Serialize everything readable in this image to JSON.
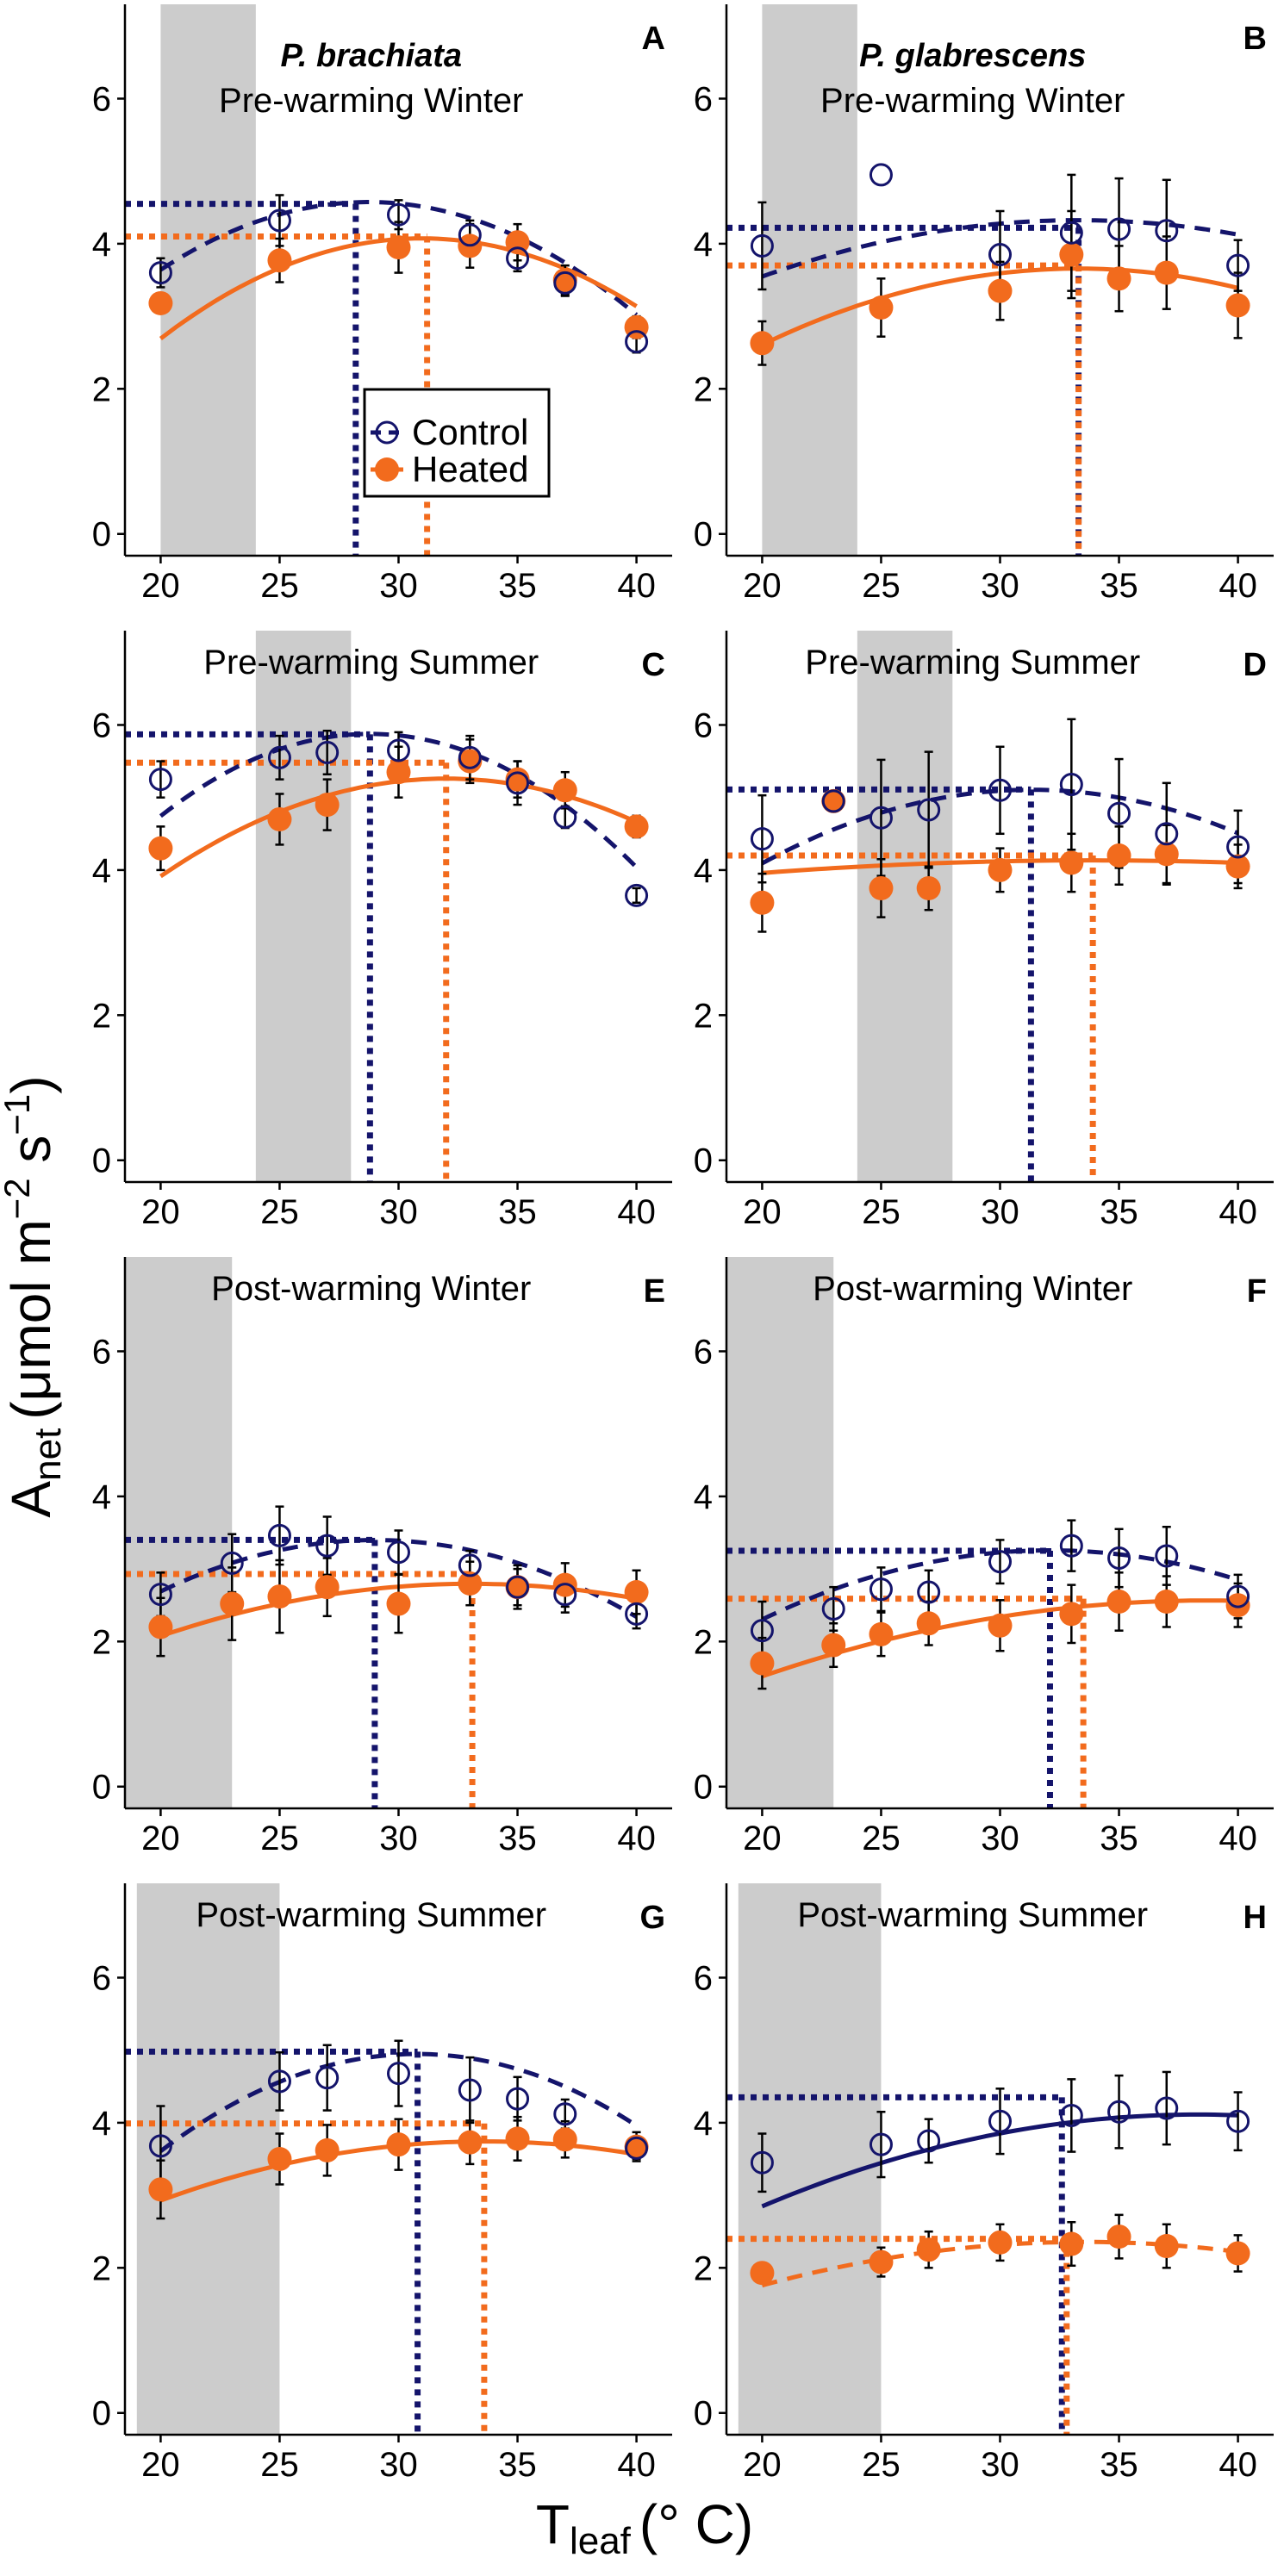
{
  "colors": {
    "control": "#14146b",
    "heated": "#f26b1d",
    "band": "#cccccc"
  },
  "legend": {
    "control": "Control",
    "heated": "Heated"
  },
  "chart_data": {
    "type": "scatter",
    "title": "",
    "ylabel": {
      "main": "A",
      "sub": "net",
      "units": "(μmol m",
      "exp1": "−2",
      "mid": " s",
      "exp2": "−1",
      "close": ")"
    },
    "xlabel": {
      "main": "T",
      "sub": "leaf",
      "units": "(° C)"
    },
    "xlim": [
      18.5,
      41.5
    ],
    "ylim": [
      -0.3,
      7.3
    ],
    "xticks": [
      "20",
      "25",
      "30",
      "35",
      "40"
    ],
    "yticks": [
      "0",
      "2",
      "4",
      "6"
    ],
    "panels": [
      {
        "letter": "A",
        "species": "P. brachiata",
        "season": "Pre-warming Winter",
        "band": [
          20,
          24
        ],
        "control": {
          "x": [
            20,
            25,
            30,
            33,
            35,
            37,
            40
          ],
          "y": [
            3.6,
            4.32,
            4.4,
            4.12,
            3.8,
            3.46,
            2.65
          ],
          "err": [
            0.2,
            0.35,
            0.2,
            0.2,
            0.18,
            0.18,
            0.15
          ],
          "fit": {
            "style": "dashed",
            "a": -0.01225,
            "b": 0.704,
            "c": -5.54
          },
          "topt": 28.2,
          "pmax": 4.55
        },
        "heated": {
          "x": [
            20,
            25,
            30,
            33,
            35,
            37,
            40
          ],
          "y": [
            3.18,
            3.77,
            3.95,
            3.97,
            4.02,
            3.5,
            2.85
          ],
          "err": [
            0.1,
            0.3,
            0.35,
            0.3,
            0.25,
            0.2,
            0.15
          ],
          "fit": {
            "style": "solid",
            "a": -0.01148,
            "b": 0.7111,
            "c": -6.938
          },
          "topt": 31.2,
          "pmax": 4.1
        }
      },
      {
        "letter": "B",
        "species": "P. glabrescens",
        "season": "Pre-warming Winter",
        "band": [
          20,
          24
        ],
        "control": {
          "x": [
            20,
            25,
            30,
            33,
            35,
            37,
            40
          ],
          "y": [
            3.97,
            4.95,
            3.85,
            4.15,
            4.2,
            4.18,
            3.7
          ],
          "err": [
            0.6,
            0,
            0.6,
            0.8,
            0.7,
            0.7,
            0.35
          ],
          "fit": {
            "style": "dashed",
            "a": -0.0044,
            "b": 0.2929,
            "c": -0.55
          },
          "topt": 33.3,
          "pmax": 4.22
        },
        "heated": {
          "x": [
            20,
            25,
            30,
            33,
            35,
            37,
            40
          ],
          "y": [
            2.63,
            3.12,
            3.35,
            3.85,
            3.52,
            3.6,
            3.15
          ],
          "err": [
            0.3,
            0.4,
            0.4,
            0.6,
            0.45,
            0.5,
            0.45
          ],
          "fit": {
            "style": "solid",
            "a": -0.00594,
            "b": 0.3955,
            "c": -2.926
          },
          "topt": 33.3,
          "pmax": 3.7
        }
      },
      {
        "letter": "C",
        "species": "",
        "season": "Pre-warming Summer",
        "band": [
          24,
          28
        ],
        "control": {
          "x": [
            20,
            25,
            27,
            30,
            33,
            35,
            37,
            40
          ],
          "y": [
            5.25,
            5.55,
            5.62,
            5.65,
            5.55,
            5.2,
            4.73,
            3.65
          ],
          "err": [
            0.25,
            0.3,
            0.3,
            0.25,
            0.3,
            0.3,
            0.15,
            0.1
          ],
          "fit": {
            "style": "dashed",
            "a": -0.01465,
            "b": 0.8437,
            "c": -6.27
          },
          "topt": 28.8,
          "pmax": 5.87
        },
        "heated": {
          "x": [
            20,
            25,
            27,
            30,
            33,
            35,
            37,
            40
          ],
          "y": [
            4.3,
            4.7,
            4.9,
            5.35,
            5.5,
            5.25,
            5.1,
            4.6
          ],
          "err": [
            0.3,
            0.35,
            0.35,
            0.35,
            0.3,
            0.25,
            0.25,
            0.15
          ],
          "fit": {
            "style": "solid",
            "a": -0.00935,
            "b": 0.5984,
            "c": -4.314
          },
          "topt": 32.0,
          "pmax": 5.48
        }
      },
      {
        "letter": "D",
        "species": "",
        "season": "Pre-warming Summer",
        "band": [
          24,
          28
        ],
        "control": {
          "x": [
            20,
            23,
            25,
            27,
            30,
            33,
            35,
            37,
            40
          ],
          "y": [
            4.43,
            4.95,
            4.72,
            4.83,
            5.1,
            5.18,
            4.78,
            4.5,
            4.32
          ],
          "err": [
            0.6,
            0,
            0.8,
            0.8,
            0.6,
            0.9,
            0.75,
            0.7,
            0.5
          ],
          "fit": {
            "style": "dashed",
            "a": -0.00793,
            "b": 0.4966,
            "c": -2.668
          },
          "topt": 31.3,
          "pmax": 5.11
        },
        "heated": {
          "x": [
            20,
            23,
            25,
            27,
            30,
            33,
            35,
            37,
            40
          ],
          "y": [
            3.55,
            4.95,
            3.75,
            3.75,
            4.0,
            4.1,
            4.2,
            4.22,
            4.05
          ],
          "err": [
            0.4,
            0,
            0.4,
            0.3,
            0.3,
            0.4,
            0.4,
            0.4,
            0.3
          ],
          "fit": {
            "style": "solid",
            "a": -0.0009,
            "b": 0.061,
            "c": 3.1
          },
          "topt": 33.9,
          "pmax": 4.2
        }
      },
      {
        "letter": "E",
        "species": "",
        "season": "Post-warming Winter",
        "band": [
          18.5,
          23
        ],
        "control": {
          "x": [
            20,
            23,
            25,
            27,
            30,
            33,
            35,
            37,
            40
          ],
          "y": [
            2.65,
            3.08,
            3.46,
            3.32,
            3.23,
            3.05,
            2.75,
            2.65,
            2.38
          ],
          "err": [
            0.3,
            0.4,
            0.4,
            0.4,
            0.3,
            0.2,
            0.25,
            0.25,
            0.2
          ],
          "fit": {
            "style": "dashed",
            "a": -0.00875,
            "b": 0.5075,
            "c": -3.96
          },
          "topt": 29.0,
          "pmax": 3.4
        },
        "heated": {
          "x": [
            20,
            23,
            25,
            27,
            30,
            33,
            35,
            37,
            40
          ],
          "y": [
            2.2,
            2.52,
            2.62,
            2.75,
            2.52,
            2.8,
            2.75,
            2.78,
            2.68
          ],
          "err": [
            0.4,
            0.5,
            0.5,
            0.4,
            0.4,
            0.3,
            0.3,
            0.3,
            0.3
          ],
          "fit": {
            "style": "solid",
            "a": -0.00423,
            "b": 0.2796,
            "c": -1.825
          },
          "topt": 33.1,
          "pmax": 2.93
        }
      },
      {
        "letter": "F",
        "species": "",
        "season": "Post-warming Winter",
        "band": [
          18.5,
          23
        ],
        "control": {
          "x": [
            20,
            23,
            25,
            27,
            30,
            33,
            35,
            37,
            40
          ],
          "y": [
            2.15,
            2.45,
            2.72,
            2.68,
            3.1,
            3.32,
            3.15,
            3.18,
            2.62
          ],
          "err": [
            0.4,
            0.3,
            0.3,
            0.3,
            0.3,
            0.35,
            0.4,
            0.4,
            0.3
          ],
          "fit": {
            "style": "dashed",
            "a": -0.00651,
            "b": 0.4179,
            "c": -3.45
          },
          "topt": 32.1,
          "pmax": 3.25
        },
        "heated": {
          "x": [
            20,
            23,
            25,
            27,
            30,
            33,
            35,
            37,
            40
          ],
          "y": [
            1.7,
            1.95,
            2.1,
            2.25,
            2.22,
            2.38,
            2.55,
            2.55,
            2.5
          ],
          "err": [
            0.35,
            0.3,
            0.3,
            0.3,
            0.35,
            0.4,
            0.4,
            0.35,
            0.3
          ],
          "fit": {
            "style": "solid",
            "a": -0.003,
            "b": 0.232,
            "c": -1.92
          },
          "topt": 33.5,
          "pmax": 2.59
        }
      },
      {
        "letter": "G",
        "species": "",
        "season": "Post-warming Summer",
        "band": [
          19,
          25
        ],
        "control": {
          "x": [
            20,
            25,
            27,
            30,
            33,
            35,
            37,
            40
          ],
          "y": [
            3.68,
            4.57,
            4.62,
            4.68,
            4.45,
            4.33,
            4.12,
            3.65
          ],
          "err": [
            0.55,
            0.4,
            0.45,
            0.45,
            0.45,
            0.3,
            0.2,
            0.15
          ],
          "fit": {
            "style": "dashed",
            "a": -0.01157,
            "b": 0.7118,
            "c": -6.0
          },
          "topt": 30.8,
          "pmax": 4.98
        },
        "heated": {
          "x": [
            20,
            25,
            27,
            30,
            33,
            35,
            37,
            40
          ],
          "y": [
            3.08,
            3.5,
            3.62,
            3.7,
            3.73,
            3.78,
            3.77,
            3.67
          ],
          "err": [
            0.4,
            0.35,
            0.35,
            0.35,
            0.3,
            0.3,
            0.25,
            0.2
          ],
          "fit": {
            "style": "solid",
            "a": -0.00439,
            "b": 0.2952,
            "c": -1.22
          },
          "topt": 33.6,
          "pmax": 3.99
        }
      },
      {
        "letter": "H",
        "species": "",
        "season": "Post-warming Summer",
        "band": [
          19,
          25
        ],
        "control": {
          "x": [
            20,
            25,
            27,
            30,
            33,
            35,
            37,
            40
          ],
          "y": [
            3.45,
            3.7,
            3.75,
            4.02,
            4.1,
            4.15,
            4.2,
            4.02
          ],
          "err": [
            0.4,
            0.45,
            0.3,
            0.45,
            0.5,
            0.5,
            0.5,
            0.4
          ],
          "fit": {
            "style": "solid",
            "a": -0.00378,
            "b": 0.2895,
            "c": -1.43
          },
          "topt": 32.6,
          "pmax": 4.35
        },
        "heated": {
          "x": [
            20,
            25,
            27,
            30,
            33,
            35,
            37,
            40
          ],
          "y": [
            1.93,
            2.08,
            2.25,
            2.35,
            2.33,
            2.43,
            2.3,
            2.2
          ],
          "err": [
            0.1,
            0.2,
            0.25,
            0.25,
            0.3,
            0.3,
            0.3,
            0.25
          ],
          "fit": {
            "style": "dashed",
            "a": -0.00327,
            "b": 0.2193,
            "c": -1.32
          },
          "topt": 32.8,
          "pmax": 2.4
        }
      }
    ]
  }
}
